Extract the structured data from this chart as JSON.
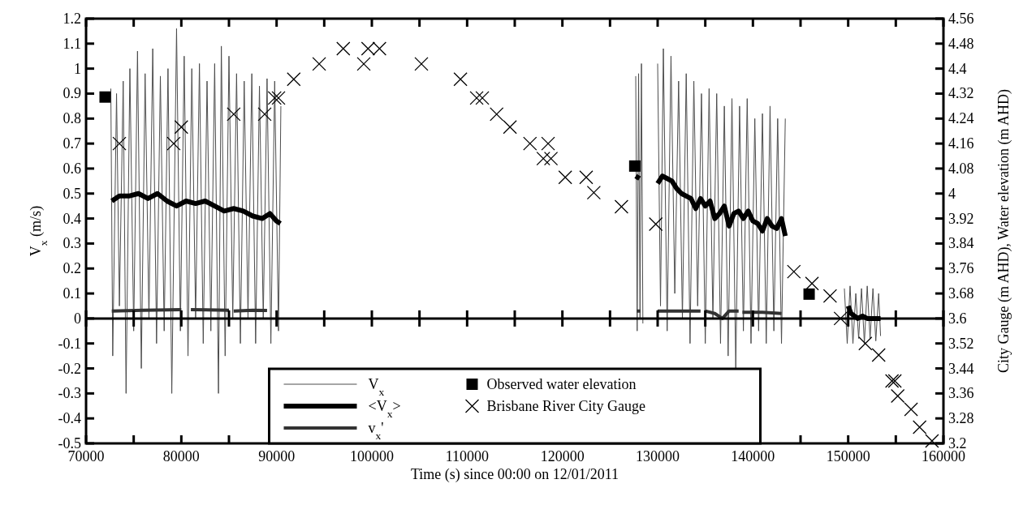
{
  "chart_data": {
    "type": "line",
    "xlabel": "Time (s) since 00:00 on 12/01/2011",
    "ylabel": "V$_{x}$ (m/s)",
    "y2label": "City Gauge (m AHD), Water elevation (m AHD)",
    "xlim": [
      70000,
      160000
    ],
    "xticks": [
      70000,
      {
        "value": 75000,
        "label": null
      },
      80000,
      {
        "value": 85000,
        "label": null
      },
      90000,
      {
        "value": 95000,
        "label": null
      },
      100000,
      {
        "value": 105000,
        "label": null
      },
      110000,
      {
        "value": 115000,
        "label": null
      },
      120000,
      {
        "value": 125000,
        "label": null
      },
      130000,
      {
        "value": 135000,
        "label": null
      },
      140000,
      {
        "value": 145000,
        "label": null
      },
      150000,
      {
        "value": 155000,
        "label": null
      },
      160000
    ],
    "ylim": [
      -0.5,
      1.2
    ],
    "yticks": [
      -0.5,
      -0.4,
      -0.3,
      -0.2,
      -0.1,
      0,
      0.1,
      0.2,
      0.3,
      0.4,
      0.5,
      0.6,
      0.7,
      0.8,
      0.9,
      1,
      1.1,
      1.2
    ],
    "y2lim": [
      3.2,
      4.56
    ],
    "y2ticks": [
      3.2,
      3.28,
      3.36,
      3.44,
      3.52,
      3.6,
      3.68,
      3.76,
      3.84,
      3.92,
      4,
      4.08,
      4.16,
      4.24,
      4.32,
      4.4,
      4.48,
      4.56
    ],
    "legend": "bottom",
    "grid": false,
    "ref_lines": [
      {
        "axis": "y",
        "value": 0,
        "color": "#000000"
      }
    ],
    "series": [
      {
        "name": "V$_{x}$",
        "color": "#4d4d4d",
        "x": [
          72600,
          72800,
          73200,
          73500,
          73900,
          74200,
          74600,
          75000,
          75400,
          75800,
          76200,
          76600,
          77000,
          77400,
          77800,
          78200,
          78600,
          79000,
          79500,
          79900,
          80300,
          80700,
          81100,
          81500,
          81900,
          82300,
          82700,
          83100,
          83500,
          83900,
          84200,
          84600,
          85000,
          85400,
          85800,
          86200,
          86600,
          87000,
          87400,
          87800,
          88200,
          88600,
          89000,
          89400,
          89800,
          90200,
          90450,
          100000,
          127700,
          127850,
          128000,
          128150,
          128300,
          128450,
          129000,
          130000,
          130300,
          130600,
          131000,
          131400,
          131800,
          132200,
          132600,
          133000,
          133400,
          133800,
          134200,
          134600,
          135000,
          135400,
          135800,
          136200,
          136600,
          137000,
          137400,
          137800,
          138200,
          138600,
          139000,
          139400,
          139800,
          140200,
          140600,
          141000,
          141400,
          141800,
          142200,
          142600,
          143000,
          143400,
          146000,
          149600,
          149900,
          150200,
          150500,
          150800,
          151100,
          151400,
          151700,
          152000,
          152300,
          152600,
          152900,
          153200,
          153400
        ],
        "values": [
          0.92,
          -0.15,
          0.9,
          0.05,
          0.95,
          -0.3,
          1,
          -0.05,
          1.07,
          -0.2,
          0.98,
          0,
          1.08,
          -0.1,
          0.97,
          -0.05,
          1,
          -0.3,
          1.16,
          -0.05,
          1.05,
          -0.15,
          1,
          0,
          1.02,
          -0.1,
          0.95,
          -0.05,
          1.02,
          -0.3,
          1.09,
          -0.15,
          1.05,
          0,
          0.98,
          -0.1,
          0.95,
          0,
          0.98,
          -0.1,
          0.93,
          0,
          0.96,
          -0.1,
          0.95,
          -0.05,
          0.85,
          null,
          0.97,
          -0.05,
          0.98,
          0,
          1.02,
          -0.02,
          null,
          1.02,
          0.05,
          1.08,
          -0.05,
          1.05,
          0.1,
          0.95,
          0,
          0.98,
          -0.1,
          0.95,
          0.05,
          0.9,
          -0.1,
          0.92,
          0,
          0.9,
          -0.1,
          0.85,
          -0.15,
          0.88,
          -0.2,
          0.85,
          -0.05,
          0.88,
          -0.1,
          0.8,
          -0.05,
          0.82,
          -0.1,
          0.85,
          -0.05,
          0.8,
          -0.1,
          0.8,
          null,
          0.12,
          -0.1,
          0.13,
          -0.1,
          0.1,
          -0.08,
          0.12,
          -0.1,
          0.13,
          -0.08,
          0.12,
          -0.09,
          0.1,
          -0.07
        ]
      },
      {
        "name": "<V$_{x}$>",
        "color": "#000000",
        "x": [
          72700,
          73500,
          74500,
          75500,
          76500,
          77500,
          78500,
          79500,
          80500,
          81500,
          82500,
          83500,
          84500,
          85500,
          86500,
          87500,
          88500,
          89300,
          90000,
          90400,
          100000,
          127700,
          128100,
          129000,
          130000,
          130500,
          131000,
          131500,
          132000,
          132500,
          133000,
          133500,
          134000,
          134500,
          135000,
          135500,
          136000,
          136500,
          137000,
          137500,
          138000,
          138500,
          139000,
          139500,
          140000,
          140500,
          141000,
          141500,
          142000,
          142500,
          143000,
          143400,
          146000,
          150000,
          150300,
          151000,
          151500,
          152000,
          152500,
          153000,
          153400
        ],
        "values": [
          0.47,
          0.49,
          0.49,
          0.5,
          0.48,
          0.5,
          0.47,
          0.45,
          0.47,
          0.46,
          0.47,
          0.45,
          0.43,
          0.44,
          0.43,
          0.41,
          0.4,
          0.42,
          0.39,
          0.38,
          null,
          0.57,
          0.56,
          null,
          0.54,
          0.57,
          0.56,
          0.55,
          0.52,
          0.5,
          0.49,
          0.48,
          0.44,
          0.48,
          0.45,
          0.47,
          0.4,
          0.42,
          0.45,
          0.37,
          0.42,
          0.43,
          0.4,
          0.43,
          0.39,
          0.38,
          0.35,
          0.4,
          0.37,
          0.36,
          0.4,
          0.33,
          null,
          0.05,
          0.02,
          0,
          0.01,
          0,
          0,
          0,
          0
        ]
      },
      {
        "name": "v$_{x}$'",
        "color": "#333333",
        "x": [
          72700,
          76000,
          80000,
          80200,
          81000,
          85000,
          85300,
          85500,
          87500,
          89000,
          100000,
          127800,
          128200,
          129000,
          130000,
          133000,
          134500,
          134700,
          135000,
          136000,
          136800,
          137500,
          138500,
          138700,
          138900,
          141000,
          143000
        ],
        "values": [
          0.03,
          0.033,
          0.035,
          null,
          0.035,
          0.033,
          null,
          0.03,
          0.033,
          0.032,
          null,
          0.03,
          0.03,
          null,
          0.03,
          0.03,
          0.03,
          null,
          0.03,
          0.02,
          0,
          0.03,
          0.03,
          null,
          0.025,
          0.025,
          0.02
        ]
      },
      {
        "name": "Observed water elevation",
        "type": "scatter",
        "axis": "y2",
        "color": "#000000",
        "marker": "square",
        "x": [
          72000,
          127600,
          145900
        ],
        "values": [
          4.309,
          4.088,
          3.678
        ]
      },
      {
        "name": "Brisbane River City Gauge",
        "type": "scatter",
        "axis": "y2",
        "color": "#000000",
        "marker": "cross",
        "x": [
          73500,
          79200,
          80000,
          85500,
          88750,
          89800,
          90200,
          91800,
          94470,
          97000,
          99150,
          99600,
          100800,
          105200,
          109300,
          111000,
          111600,
          113100,
          114500,
          116600,
          118500,
          118000,
          118800,
          120300,
          122500,
          123300,
          126200,
          129800,
          144300,
          146200,
          148100,
          149200,
          151800,
          153200,
          154600,
          154900,
          155200,
          156600,
          157500,
          158800
        ],
        "values": [
          4.16,
          4.16,
          4.213,
          4.254,
          4.254,
          4.306,
          4.306,
          4.366,
          4.415,
          4.464,
          4.415,
          4.464,
          4.464,
          4.415,
          4.366,
          4.306,
          4.306,
          4.254,
          4.213,
          4.16,
          4.16,
          4.112,
          4.112,
          4.052,
          4.052,
          4.003,
          3.958,
          3.902,
          3.75,
          3.712,
          3.672,
          3.6,
          3.52,
          3.483,
          3.4,
          3.4,
          3.352,
          3.309,
          3.252,
          3.208
        ]
      }
    ]
  }
}
